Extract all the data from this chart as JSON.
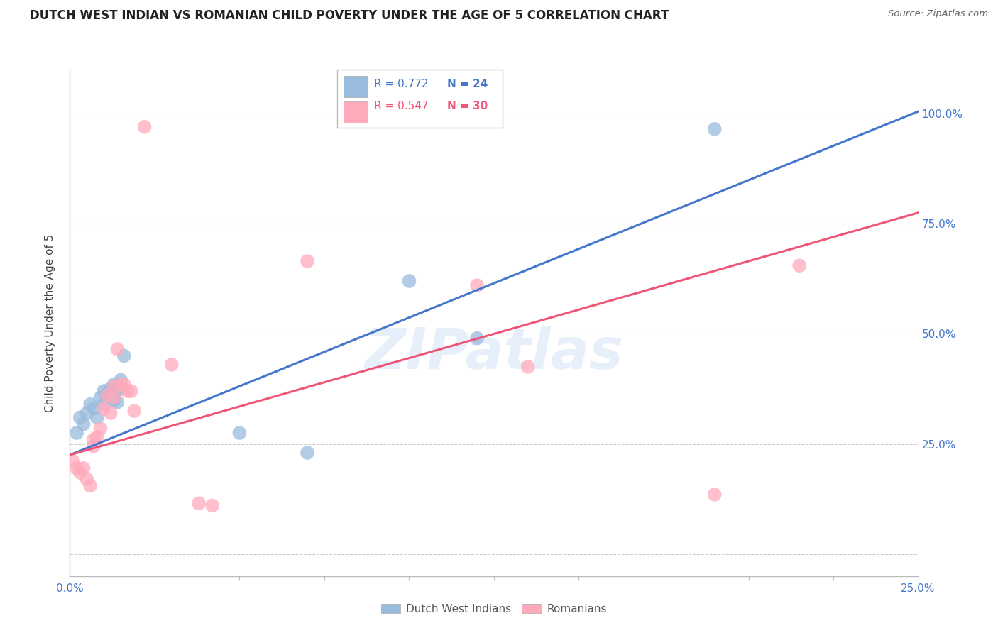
{
  "title": "DUTCH WEST INDIAN VS ROMANIAN CHILD POVERTY UNDER THE AGE OF 5 CORRELATION CHART",
  "source": "Source: ZipAtlas.com",
  "ylabel": "Child Poverty Under the Age of 5",
  "xlim": [
    0.0,
    0.25
  ],
  "ylim": [
    -0.05,
    1.1
  ],
  "ytick_vals": [
    0.0,
    0.25,
    0.5,
    0.75,
    1.0
  ],
  "xtick_vals": [
    0.0,
    0.025,
    0.05,
    0.075,
    0.1,
    0.125,
    0.15,
    0.175,
    0.2,
    0.225,
    0.25
  ],
  "blue_color": "#99BBDD",
  "pink_color": "#FFAABB",
  "blue_line_color": "#4477CC",
  "pink_line_color": "#EE5577",
  "legend_r_blue": "R = 0.772",
  "legend_n_blue": "N = 24",
  "legend_r_pink": "R = 0.547",
  "legend_n_pink": "N = 30",
  "watermark": "ZIPatlas",
  "blue_scatter_x": [
    0.002,
    0.003,
    0.004,
    0.005,
    0.006,
    0.007,
    0.008,
    0.009,
    0.01,
    0.01,
    0.011,
    0.012,
    0.013,
    0.013,
    0.014,
    0.014,
    0.015,
    0.015,
    0.016,
    0.05,
    0.07,
    0.1,
    0.12,
    0.19
  ],
  "blue_scatter_y": [
    0.275,
    0.31,
    0.295,
    0.32,
    0.34,
    0.33,
    0.31,
    0.355,
    0.34,
    0.37,
    0.365,
    0.375,
    0.35,
    0.385,
    0.345,
    0.375,
    0.375,
    0.395,
    0.45,
    0.275,
    0.23,
    0.62,
    0.49,
    0.965
  ],
  "pink_scatter_x": [
    0.001,
    0.002,
    0.003,
    0.004,
    0.005,
    0.006,
    0.007,
    0.007,
    0.008,
    0.009,
    0.01,
    0.011,
    0.012,
    0.013,
    0.013,
    0.014,
    0.015,
    0.016,
    0.017,
    0.018,
    0.019,
    0.022,
    0.03,
    0.038,
    0.042,
    0.07,
    0.12,
    0.135,
    0.19,
    0.215
  ],
  "pink_scatter_y": [
    0.21,
    0.195,
    0.185,
    0.195,
    0.17,
    0.155,
    0.245,
    0.26,
    0.265,
    0.285,
    0.33,
    0.36,
    0.32,
    0.355,
    0.38,
    0.465,
    0.385,
    0.385,
    0.37,
    0.37,
    0.325,
    0.97,
    0.43,
    0.115,
    0.11,
    0.665,
    0.61,
    0.425,
    0.135,
    0.655
  ],
  "blue_line_x": [
    0.0,
    0.25
  ],
  "blue_line_y": [
    0.225,
    1.005
  ],
  "pink_line_x": [
    0.0,
    0.25
  ],
  "pink_line_y": [
    0.225,
    0.775
  ]
}
